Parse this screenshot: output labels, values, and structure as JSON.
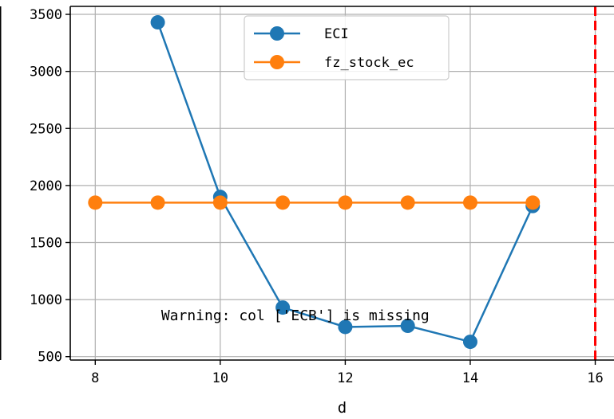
{
  "chart_data": {
    "type": "line",
    "title": "",
    "xlabel": "d",
    "ylabel": "",
    "xlim": [
      7.6,
      16.3
    ],
    "ylim": [
      470,
      3570
    ],
    "xticks": [
      8,
      10,
      12,
      14,
      16
    ],
    "yticks": [
      500,
      1000,
      1500,
      2000,
      2500,
      3000,
      3500
    ],
    "grid": true,
    "legend_position": "top-center",
    "series": [
      {
        "name": "ECI",
        "color": "#1f77b4",
        "x": [
          9,
          10,
          11,
          12,
          13,
          14,
          15
        ],
        "values": [
          3430,
          1900,
          930,
          760,
          770,
          630,
          1820
        ]
      },
      {
        "name": "fz_stock_ec",
        "color": "#ff7f0e",
        "x": [
          8,
          9,
          10,
          11,
          12,
          13,
          14,
          15
        ],
        "values": [
          1850,
          1850,
          1850,
          1850,
          1850,
          1850,
          1850,
          1850
        ]
      }
    ],
    "reference_line": {
      "x": 16,
      "color": "#ff0000",
      "style": "dashed"
    },
    "annotation": {
      "text": "Warning: col ['ECB'] is missing",
      "x": 11.2,
      "y": 820
    }
  }
}
